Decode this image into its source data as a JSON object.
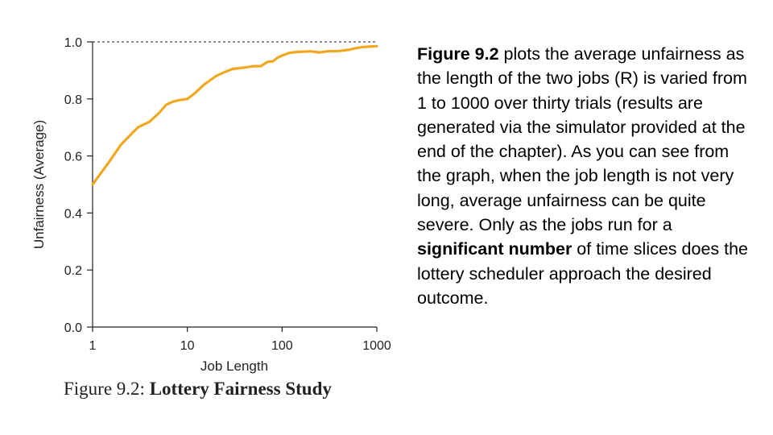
{
  "chart_data": {
    "type": "line",
    "xlabel": "Job Length",
    "ylabel": "Unfairness (Average)",
    "xscale": "log",
    "xlim": [
      1,
      1000
    ],
    "ylim": [
      0.0,
      1.0
    ],
    "x_ticks": [
      "1",
      "10",
      "100",
      "1000"
    ],
    "y_ticks": [
      "0.0",
      "0.2",
      "0.4",
      "0.6",
      "0.8",
      "1.0"
    ],
    "reference_line": {
      "y": 1.0,
      "style": "dashed"
    },
    "line_color": "#f0a820",
    "series": [
      {
        "x": [
          1,
          1.5,
          2,
          3,
          4,
          5,
          6,
          7,
          8,
          10,
          12,
          15,
          20,
          25,
          30,
          40,
          50,
          60,
          70,
          80,
          90,
          100,
          120,
          150,
          200,
          250,
          300,
          400,
          500,
          600,
          700,
          800,
          1000
        ],
        "values": [
          0.5,
          0.58,
          0.64,
          0.7,
          0.72,
          0.75,
          0.78,
          0.79,
          0.795,
          0.8,
          0.82,
          0.85,
          0.88,
          0.895,
          0.905,
          0.91,
          0.915,
          0.915,
          0.93,
          0.932,
          0.945,
          0.952,
          0.962,
          0.965,
          0.967,
          0.963,
          0.967,
          0.968,
          0.972,
          0.978,
          0.982,
          0.983,
          0.985
        ]
      }
    ]
  },
  "caption": {
    "label": "Figure 9.2:",
    "title": "Lottery Fairness Study"
  },
  "description": {
    "figure_ref": "Figure 9.2",
    "text_1": " plots the average unfairness as the length of the two jobs (R) is varied from 1 to 1000 over thirty trials (results are generated via the simulator provided at the end of the chapter). As you can see from the graph, when the job length is not very long, average unfairness can be quite severe. Only as the jobs run for a ",
    "emphasis": "significant number",
    "text_2": " of time slices does the lottery scheduler approach the desired outcome."
  }
}
